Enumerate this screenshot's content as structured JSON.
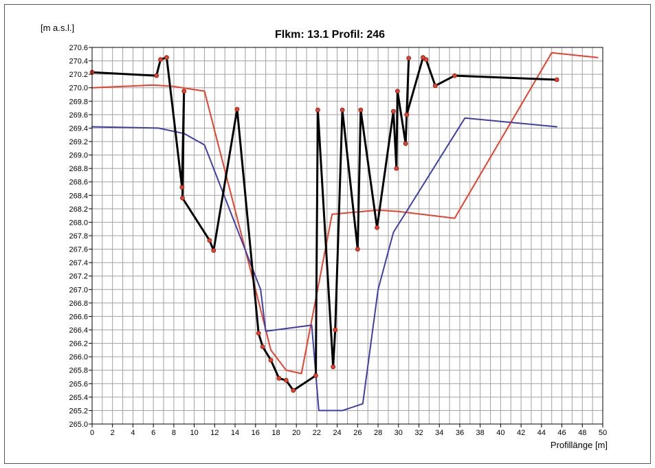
{
  "chart_data": {
    "type": "line",
    "title": "Flkm: 13.1 Profil: 246",
    "xlabel": "Profillänge [m]",
    "ylabel": "[m a.s.l.]",
    "xlim": [
      0,
      50
    ],
    "ylim": [
      265.0,
      270.6
    ],
    "grid": true,
    "x_ticks": [
      "0",
      "2",
      "4",
      "6",
      "8",
      "10",
      "12",
      "14",
      "16",
      "18",
      "20",
      "22",
      "24",
      "26",
      "28",
      "30",
      "32",
      "34",
      "36",
      "38",
      "40",
      "42",
      "44",
      "46",
      "48",
      "50"
    ],
    "y_ticks": [
      "265.0",
      "265.2",
      "265.4",
      "265.6",
      "265.8",
      "266.0",
      "266.2",
      "266.4",
      "266.6",
      "266.8",
      "267.0",
      "267.2",
      "267.4",
      "267.6",
      "267.8",
      "268.0",
      "268.2",
      "268.4",
      "268.6",
      "268.8",
      "269.0",
      "269.2",
      "269.4",
      "269.6",
      "269.8",
      "270.0",
      "270.2",
      "270.4",
      "270.6"
    ],
    "series": [
      {
        "color": "#e8402a",
        "markers": false,
        "x": [
          0,
          6,
          8,
          11,
          16,
          17.5,
          19,
          20.5,
          23.5,
          28,
          30,
          35.5,
          45,
          49.5
        ],
        "y": [
          270.0,
          270.04,
          270.02,
          269.95,
          267.0,
          266.1,
          265.8,
          265.75,
          268.12,
          268.18,
          268.16,
          268.06,
          270.52,
          270.45
        ]
      },
      {
        "color": "#3c3fa8",
        "markers": false,
        "x": [
          0,
          6.5,
          9,
          11,
          16.5,
          17,
          21.5,
          22.2,
          24.5,
          26.5,
          28,
          29.5,
          36.5,
          45.5
        ],
        "y": [
          269.42,
          269.4,
          269.32,
          269.15,
          267.0,
          266.38,
          266.47,
          265.2,
          265.2,
          265.3,
          267.0,
          267.85,
          269.55,
          269.42
        ]
      },
      {
        "color": "#000000",
        "markers": true,
        "marker_color": "#e8402a",
        "x": [
          0,
          6.3,
          6.7,
          7.3,
          8.8,
          9.0,
          8.85,
          11.5,
          11.9,
          14.2,
          16.3,
          16.7,
          17.5,
          18.3,
          19.0,
          19.7,
          21.9,
          22.1,
          23.6,
          23.8,
          24.5,
          26.0,
          26.3,
          27.9,
          29.5,
          29.8,
          29.9,
          30.7,
          31.0,
          30.8,
          32.4,
          32.7,
          33.6,
          35.5,
          45.5
        ],
        "y": [
          270.23,
          270.18,
          270.42,
          270.45,
          268.52,
          269.95,
          268.36,
          267.73,
          267.58,
          269.68,
          266.35,
          266.15,
          265.95,
          265.68,
          265.65,
          265.5,
          265.72,
          269.67,
          265.85,
          266.4,
          269.67,
          267.6,
          269.67,
          267.92,
          269.65,
          268.8,
          269.95,
          269.17,
          270.44,
          269.6,
          270.45,
          270.42,
          270.03,
          270.18,
          270.12
        ]
      }
    ]
  }
}
